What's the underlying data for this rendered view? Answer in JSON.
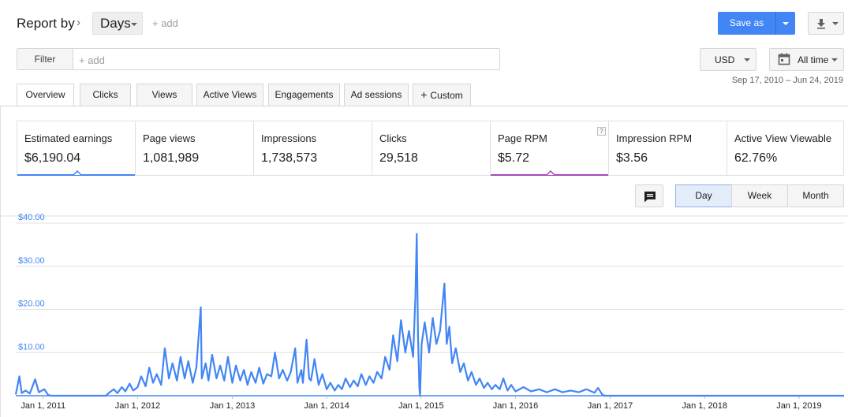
{
  "header": {
    "report_by": "Report by",
    "breadcrumb_chevron": "›",
    "days_dropdown": "Days",
    "add_link": "+ add",
    "save_as": "Save as",
    "download_icon": "download-icon"
  },
  "filter": {
    "label": "Filter",
    "placeholder": "+ add"
  },
  "controls": {
    "currency": "USD",
    "time_range": "All time",
    "date_range": "Sep 17, 2010 – Jun 24, 2019"
  },
  "tabs": [
    {
      "label": "Overview"
    },
    {
      "label": "Clicks"
    },
    {
      "label": "Views"
    },
    {
      "label": "Active Views"
    },
    {
      "label": "Engagements"
    },
    {
      "label": "Ad sessions"
    },
    {
      "label": "Custom",
      "icon": "plus-icon"
    }
  ],
  "metrics": [
    {
      "label": "Estimated earnings",
      "value": "$6,190.04",
      "color": "#4285f4",
      "selected": true
    },
    {
      "label": "Page views",
      "value": "1,081,989"
    },
    {
      "label": "Impressions",
      "value": "1,738,573"
    },
    {
      "label": "Clicks",
      "value": "29,518"
    },
    {
      "label": "Page RPM",
      "value": "$5.72",
      "color": "#ab47bc",
      "selected": true,
      "help": "?"
    },
    {
      "label": "Impression RPM",
      "value": "$3.56"
    },
    {
      "label": "Active View Viewable",
      "value": "62.76%"
    }
  ],
  "granularity": {
    "options": [
      "Day",
      "Week",
      "Month"
    ],
    "selected": "Day"
  },
  "colors": {
    "accent": "#4285f4",
    "secondary_metric": "#ab47bc"
  },
  "chart_data": {
    "type": "line",
    "title": "",
    "xlabel": "",
    "ylabel": "",
    "ylim": [
      0,
      40
    ],
    "y_ticks": [
      "$10.00",
      "$20.00",
      "$30.00",
      "$40.00"
    ],
    "y_tick_values": [
      10,
      20,
      30,
      40
    ],
    "x_ticks": [
      "Jan 1, 2011",
      "Jan 1, 2012",
      "Jan 1, 2013",
      "Jan 1, 2014",
      "Jan 1, 2015",
      "Jan 1, 2016",
      "Jan 1, 2017",
      "Jan 1, 2018",
      "Jan 1, 2019"
    ],
    "x_tick_dates": [
      "2011-01-01",
      "2012-01-01",
      "2013-01-01",
      "2014-01-01",
      "2015-01-01",
      "2016-01-01",
      "2017-01-01",
      "2018-01-01",
      "2019-01-01"
    ],
    "x_range": [
      "2010-09-17",
      "2019-06-24"
    ],
    "grid": true,
    "series": [
      {
        "color": "#4285f4",
        "points": [
          [
            "2010-09-17",
            0.3
          ],
          [
            "2010-10-01",
            4.5
          ],
          [
            "2010-10-10",
            0.6
          ],
          [
            "2010-10-25",
            1.2
          ],
          [
            "2010-11-10",
            0.5
          ],
          [
            "2010-12-01",
            3.8
          ],
          [
            "2010-12-15",
            0.8
          ],
          [
            "2011-01-05",
            1.5
          ],
          [
            "2011-01-20",
            0.2
          ],
          [
            "2011-02-01",
            0.0
          ],
          [
            "2011-06-01",
            0.0
          ],
          [
            "2011-09-01",
            0.0
          ],
          [
            "2011-09-15",
            0.8
          ],
          [
            "2011-10-01",
            1.5
          ],
          [
            "2011-10-15",
            0.6
          ],
          [
            "2011-11-01",
            2.0
          ],
          [
            "2011-11-15",
            1.0
          ],
          [
            "2011-12-01",
            2.8
          ],
          [
            "2011-12-15",
            1.2
          ],
          [
            "2012-01-01",
            2.0
          ],
          [
            "2012-01-15",
            4.5
          ],
          [
            "2012-02-01",
            2.2
          ],
          [
            "2012-02-15",
            6.5
          ],
          [
            "2012-03-01",
            3.0
          ],
          [
            "2012-03-15",
            5.0
          ],
          [
            "2012-04-01",
            2.5
          ],
          [
            "2012-04-15",
            11.0
          ],
          [
            "2012-05-01",
            4.0
          ],
          [
            "2012-05-15",
            7.5
          ],
          [
            "2012-06-01",
            3.5
          ],
          [
            "2012-06-15",
            9.0
          ],
          [
            "2012-07-01",
            4.0
          ],
          [
            "2012-07-15",
            8.0
          ],
          [
            "2012-08-01",
            3.0
          ],
          [
            "2012-08-15",
            6.5
          ],
          [
            "2012-09-01",
            20.5
          ],
          [
            "2012-09-05",
            4.0
          ],
          [
            "2012-09-20",
            7.5
          ],
          [
            "2012-10-01",
            3.5
          ],
          [
            "2012-10-15",
            9.5
          ],
          [
            "2012-11-01",
            4.0
          ],
          [
            "2012-11-15",
            7.0
          ],
          [
            "2012-12-01",
            3.5
          ],
          [
            "2012-12-15",
            9.0
          ],
          [
            "2013-01-01",
            3.0
          ],
          [
            "2013-01-15",
            7.0
          ],
          [
            "2013-02-01",
            3.5
          ],
          [
            "2013-02-15",
            6.0
          ],
          [
            "2013-03-01",
            2.5
          ],
          [
            "2013-03-15",
            5.5
          ],
          [
            "2013-04-01",
            3.0
          ],
          [
            "2013-04-15",
            6.5
          ],
          [
            "2013-05-01",
            2.8
          ],
          [
            "2013-05-15",
            5.0
          ],
          [
            "2013-06-01",
            4.5
          ],
          [
            "2013-06-15",
            10.0
          ],
          [
            "2013-07-01",
            4.0
          ],
          [
            "2013-07-15",
            6.0
          ],
          [
            "2013-08-01",
            3.5
          ],
          [
            "2013-08-15",
            5.5
          ],
          [
            "2013-09-01",
            11.0
          ],
          [
            "2013-09-10",
            3.0
          ],
          [
            "2013-09-25",
            6.0
          ],
          [
            "2013-10-01",
            3.0
          ],
          [
            "2013-10-15",
            13.0
          ],
          [
            "2013-10-25",
            4.0
          ],
          [
            "2013-11-01",
            3.5
          ],
          [
            "2013-11-15",
            8.5
          ],
          [
            "2013-12-01",
            2.5
          ],
          [
            "2013-12-15",
            5.0
          ],
          [
            "2014-01-01",
            1.5
          ],
          [
            "2014-01-15",
            3.0
          ],
          [
            "2014-02-01",
            1.2
          ],
          [
            "2014-02-15",
            2.5
          ],
          [
            "2014-03-01",
            1.5
          ],
          [
            "2014-03-15",
            4.0
          ],
          [
            "2014-04-01",
            2.0
          ],
          [
            "2014-04-15",
            3.5
          ],
          [
            "2014-05-01",
            2.2
          ],
          [
            "2014-05-15",
            5.0
          ],
          [
            "2014-06-01",
            2.5
          ],
          [
            "2014-06-15",
            4.5
          ],
          [
            "2014-07-01",
            3.0
          ],
          [
            "2014-07-15",
            5.5
          ],
          [
            "2014-08-01",
            4.0
          ],
          [
            "2014-08-15",
            9.0
          ],
          [
            "2014-09-01",
            6.0
          ],
          [
            "2014-09-15",
            14.0
          ],
          [
            "2014-10-01",
            8.0
          ],
          [
            "2014-10-15",
            17.5
          ],
          [
            "2014-11-01",
            10.0
          ],
          [
            "2014-11-15",
            15.0
          ],
          [
            "2014-12-01",
            9.0
          ],
          [
            "2014-12-10",
            23.0
          ],
          [
            "2014-12-15",
            37.5
          ],
          [
            "2014-12-20",
            14.0
          ],
          [
            "2014-12-25",
            2.0
          ],
          [
            "2014-12-28",
            0.0
          ],
          [
            "2015-01-03",
            12.0
          ],
          [
            "2015-01-15",
            17.0
          ],
          [
            "2015-02-01",
            10.0
          ],
          [
            "2015-02-15",
            18.0
          ],
          [
            "2015-03-01",
            12.0
          ],
          [
            "2015-03-15",
            15.0
          ],
          [
            "2015-04-01",
            26.0
          ],
          [
            "2015-04-10",
            12.0
          ],
          [
            "2015-04-20",
            16.0
          ],
          [
            "2015-05-01",
            7.5
          ],
          [
            "2015-05-15",
            11.0
          ],
          [
            "2015-06-01",
            5.5
          ],
          [
            "2015-06-15",
            7.5
          ],
          [
            "2015-07-01",
            3.5
          ],
          [
            "2015-07-15",
            5.5
          ],
          [
            "2015-08-01",
            2.5
          ],
          [
            "2015-08-15",
            4.0
          ],
          [
            "2015-09-01",
            1.8
          ],
          [
            "2015-09-15",
            3.0
          ],
          [
            "2015-10-01",
            1.5
          ],
          [
            "2015-10-15",
            2.5
          ],
          [
            "2015-11-01",
            1.5
          ],
          [
            "2015-11-15",
            4.0
          ],
          [
            "2015-12-01",
            1.2
          ],
          [
            "2015-12-15",
            2.5
          ],
          [
            "2016-01-01",
            1.0
          ],
          [
            "2016-02-01",
            2.0
          ],
          [
            "2016-03-01",
            1.0
          ],
          [
            "2016-04-01",
            1.5
          ],
          [
            "2016-05-01",
            0.8
          ],
          [
            "2016-06-01",
            1.5
          ],
          [
            "2016-07-01",
            0.8
          ],
          [
            "2016-08-01",
            1.2
          ],
          [
            "2016-09-01",
            0.8
          ],
          [
            "2016-10-01",
            1.5
          ],
          [
            "2016-11-01",
            0.7
          ],
          [
            "2016-11-15",
            1.8
          ],
          [
            "2016-12-01",
            0.3
          ],
          [
            "2016-12-10",
            0.0
          ],
          [
            "2017-06-01",
            0.0
          ],
          [
            "2018-01-01",
            0.0
          ],
          [
            "2019-01-01",
            0.0
          ],
          [
            "2019-06-24",
            0.0
          ]
        ]
      }
    ]
  }
}
